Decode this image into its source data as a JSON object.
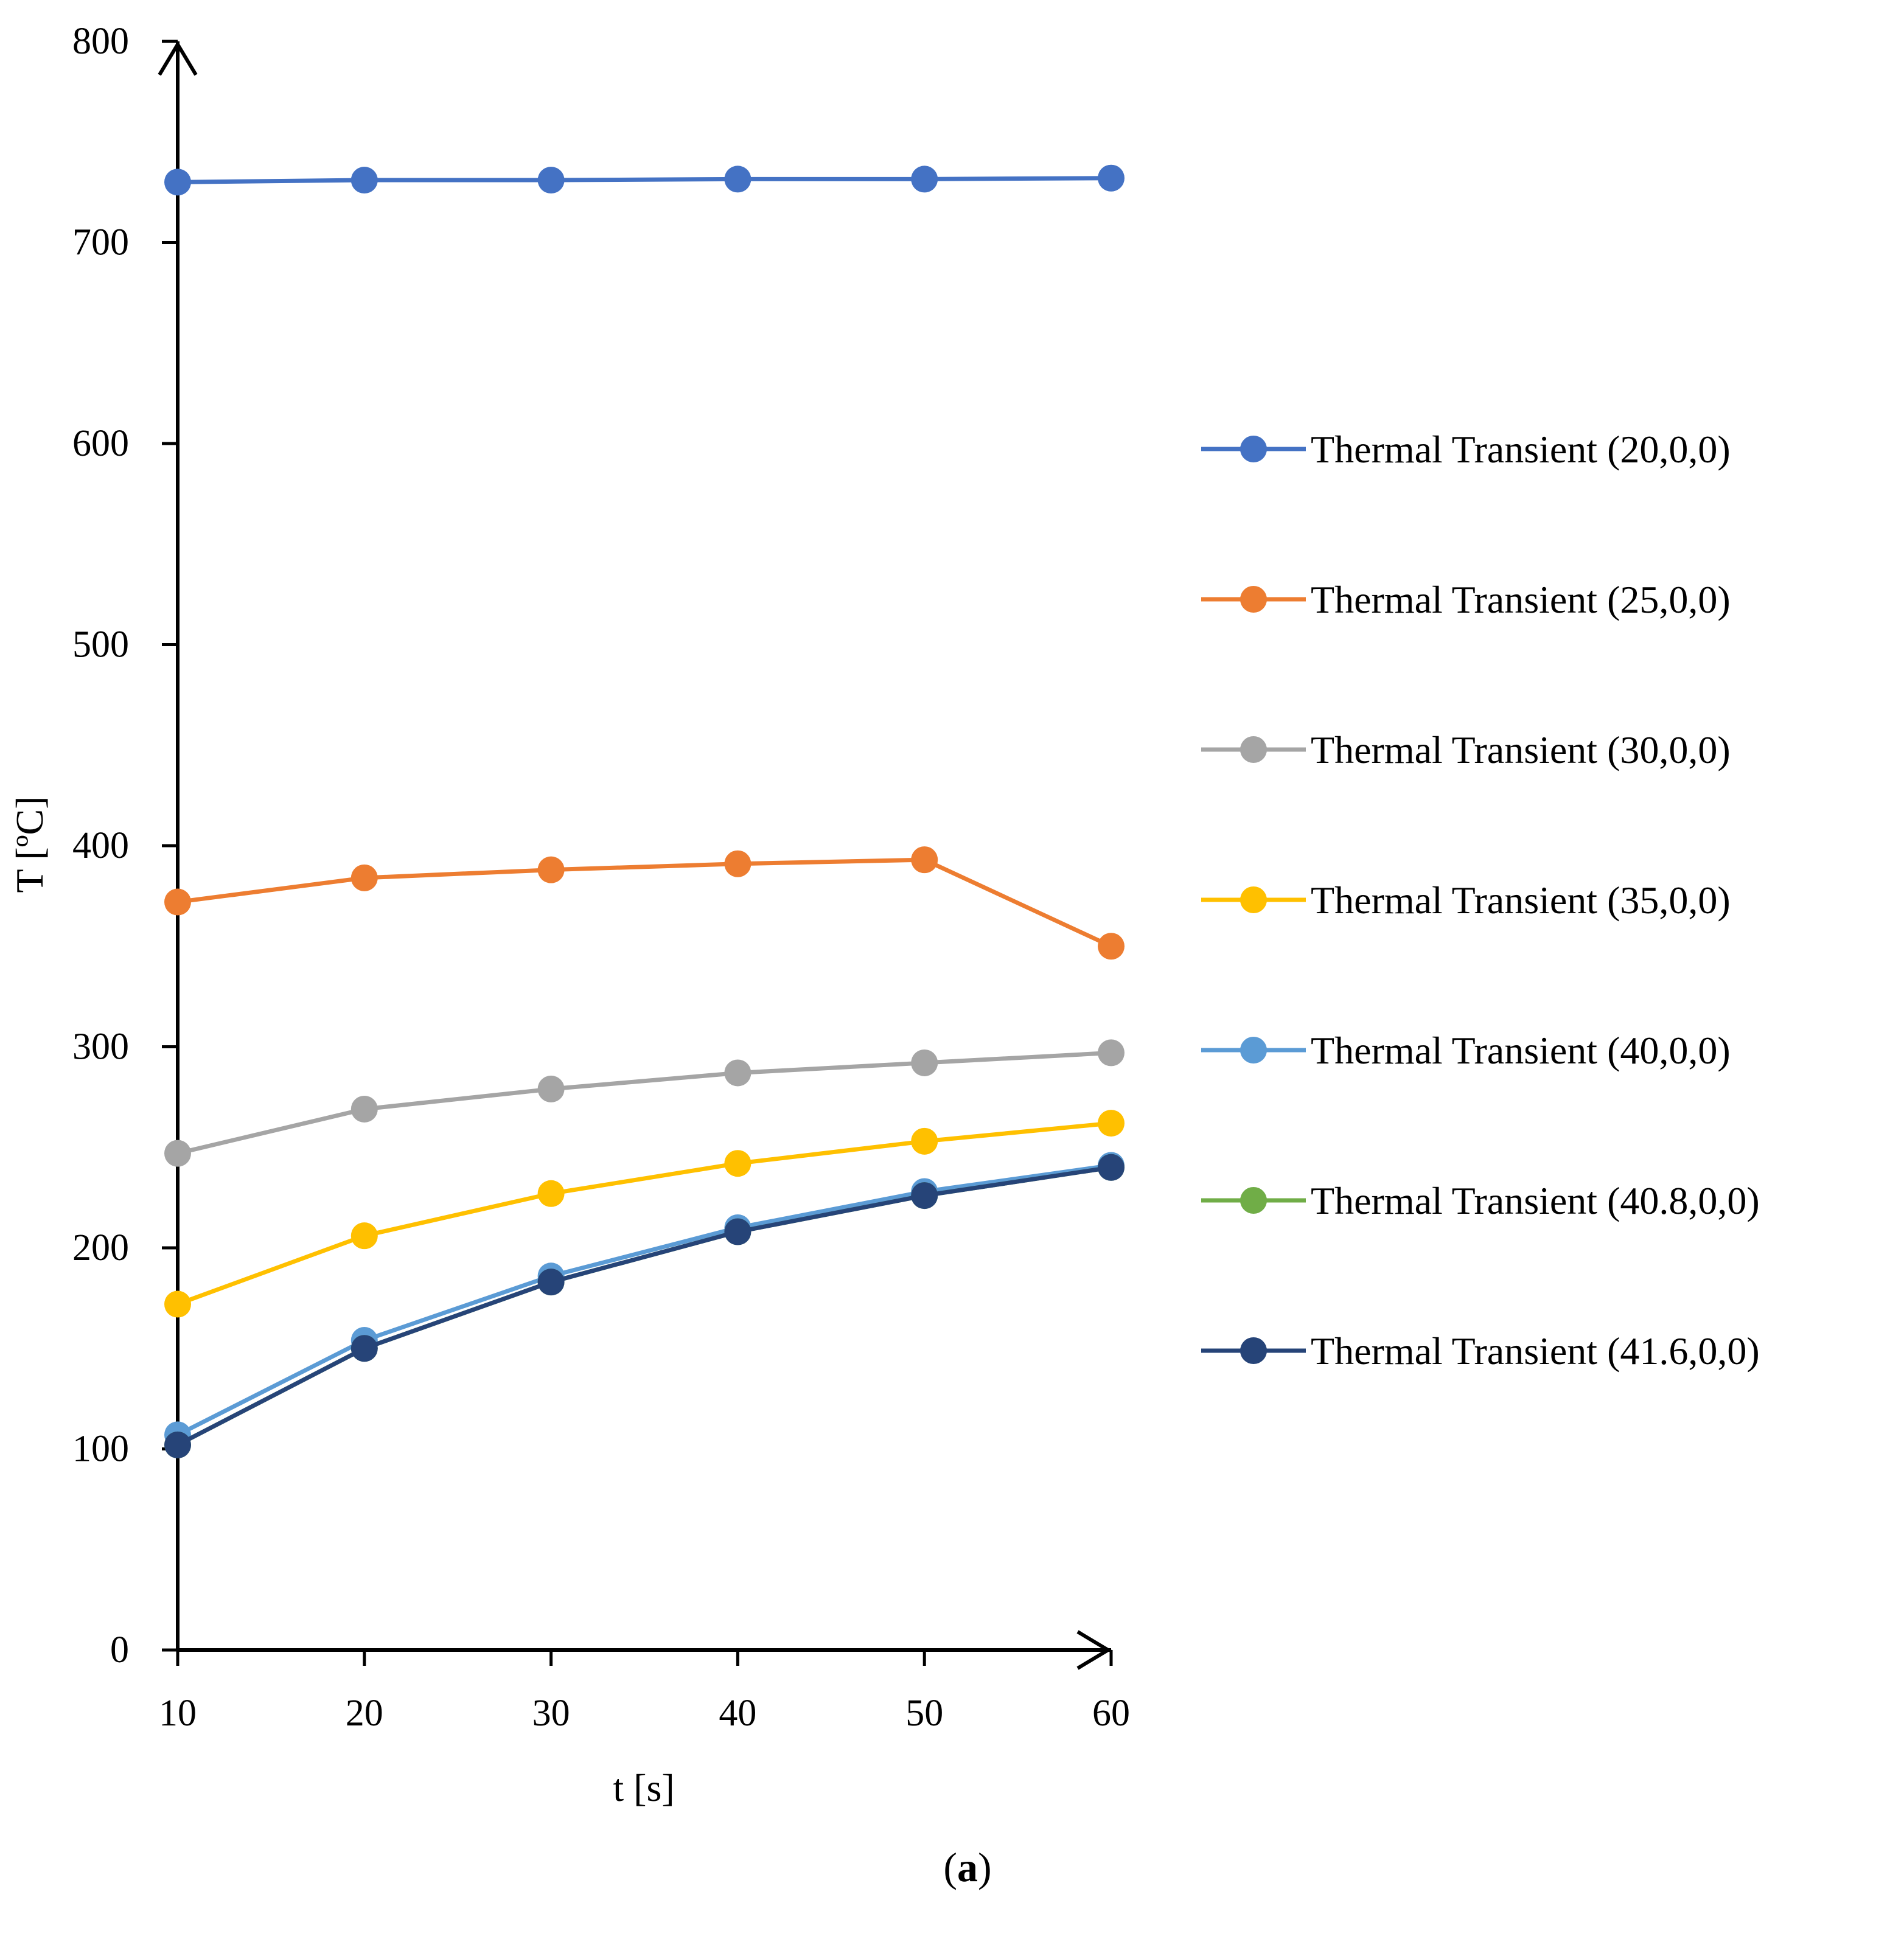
{
  "chart_data": {
    "type": "line",
    "title": "",
    "xlabel": "t [s]",
    "ylabel": "T [ºC]",
    "x": [
      10,
      20,
      30,
      40,
      50,
      60
    ],
    "xlim": [
      10,
      60
    ],
    "ylim": [
      0,
      800
    ],
    "xticks": [
      10,
      20,
      30,
      40,
      50,
      60
    ],
    "yticks": [
      0,
      100,
      200,
      300,
      400,
      500,
      600,
      700,
      800
    ],
    "grid": false,
    "legend_position": "right",
    "panel_label": {
      "open": "(",
      "letter": "a",
      "close": ")"
    },
    "series": [
      {
        "name": "Thermal Transient (20,0,0)",
        "color": "#4472C4",
        "values": [
          730,
          731,
          731,
          731.5,
          731.5,
          732
        ]
      },
      {
        "name": "Thermal Transient (25,0,0)",
        "color": "#ED7D31",
        "values": [
          372,
          384,
          388,
          391,
          393,
          350
        ]
      },
      {
        "name": "Thermal Transient (30,0,0)",
        "color": "#A5A5A5",
        "values": [
          247,
          269,
          279,
          287,
          292,
          297
        ]
      },
      {
        "name": "Thermal Transient (35,0,0)",
        "color": "#FFC000",
        "values": [
          172,
          206,
          227,
          242,
          253,
          262
        ]
      },
      {
        "name": "Thermal Transient (40,0,0)",
        "color": "#5B9BD5",
        "values": [
          107,
          154,
          186,
          210,
          228,
          241
        ]
      },
      {
        "name": "Thermal Transient (40.8,0,0)",
        "color": "#70AD47",
        "values": [
          102,
          150,
          183,
          208,
          226,
          240
        ]
      },
      {
        "name": "Thermal Transient (41.6,0,0)",
        "color": "#264478",
        "values": [
          102,
          150,
          183,
          208,
          226,
          240
        ]
      }
    ]
  }
}
